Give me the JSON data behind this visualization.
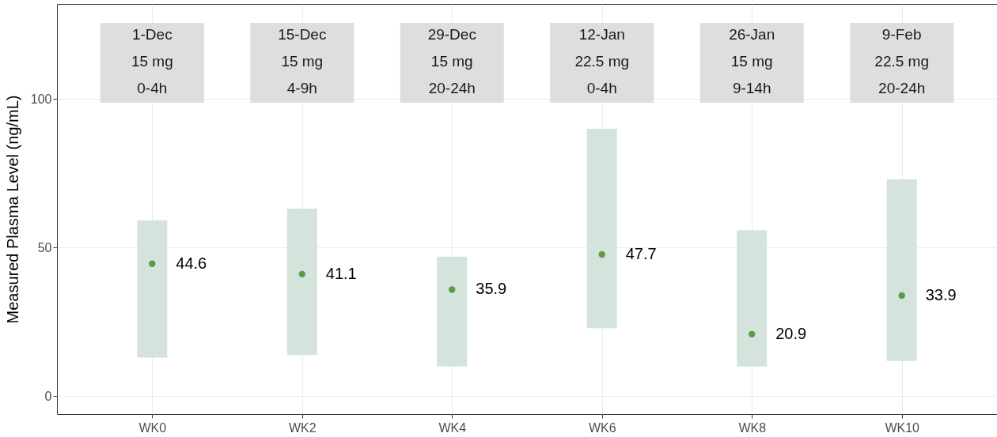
{
  "chart_data": {
    "type": "scatter",
    "ylabel": "Measured Plasma Level (ng/mL)",
    "categories": [
      "WK0",
      "WK2",
      "WK4",
      "WK6",
      "WK8",
      "WK10"
    ],
    "series": [
      {
        "type": "bar",
        "color": "#d5e3dd",
        "base": [
          13.0,
          13.9,
          10.0,
          22.9,
          10.0,
          11.9
        ],
        "values": [
          46.2,
          49.2,
          37.0,
          67.1,
          45.9,
          61.1
        ]
      },
      {
        "color": "#5b9a47",
        "values": [
          44.6,
          41.1,
          35.9,
          47.7,
          20.9,
          33.9
        ],
        "value_labels": [
          "44.6",
          "41.1",
          "35.9",
          "47.7",
          "20.9",
          "33.9"
        ]
      }
    ],
    "marker": "circle",
    "ylim": [
      -6,
      132
    ],
    "yticks": [
      0,
      50,
      100
    ],
    "grid": true,
    "annotations": [
      "1-Dec\n15 mg\n0-4h",
      "15-Dec\n15 mg\n4-9h",
      "29-Dec\n15 mg\n20-24h",
      "12-Jan\n22.5 mg\n0-4h",
      "26-Jan\n15 mg\n9-14h",
      "9-Feb\n22.5 mg\n20-24h"
    ]
  }
}
